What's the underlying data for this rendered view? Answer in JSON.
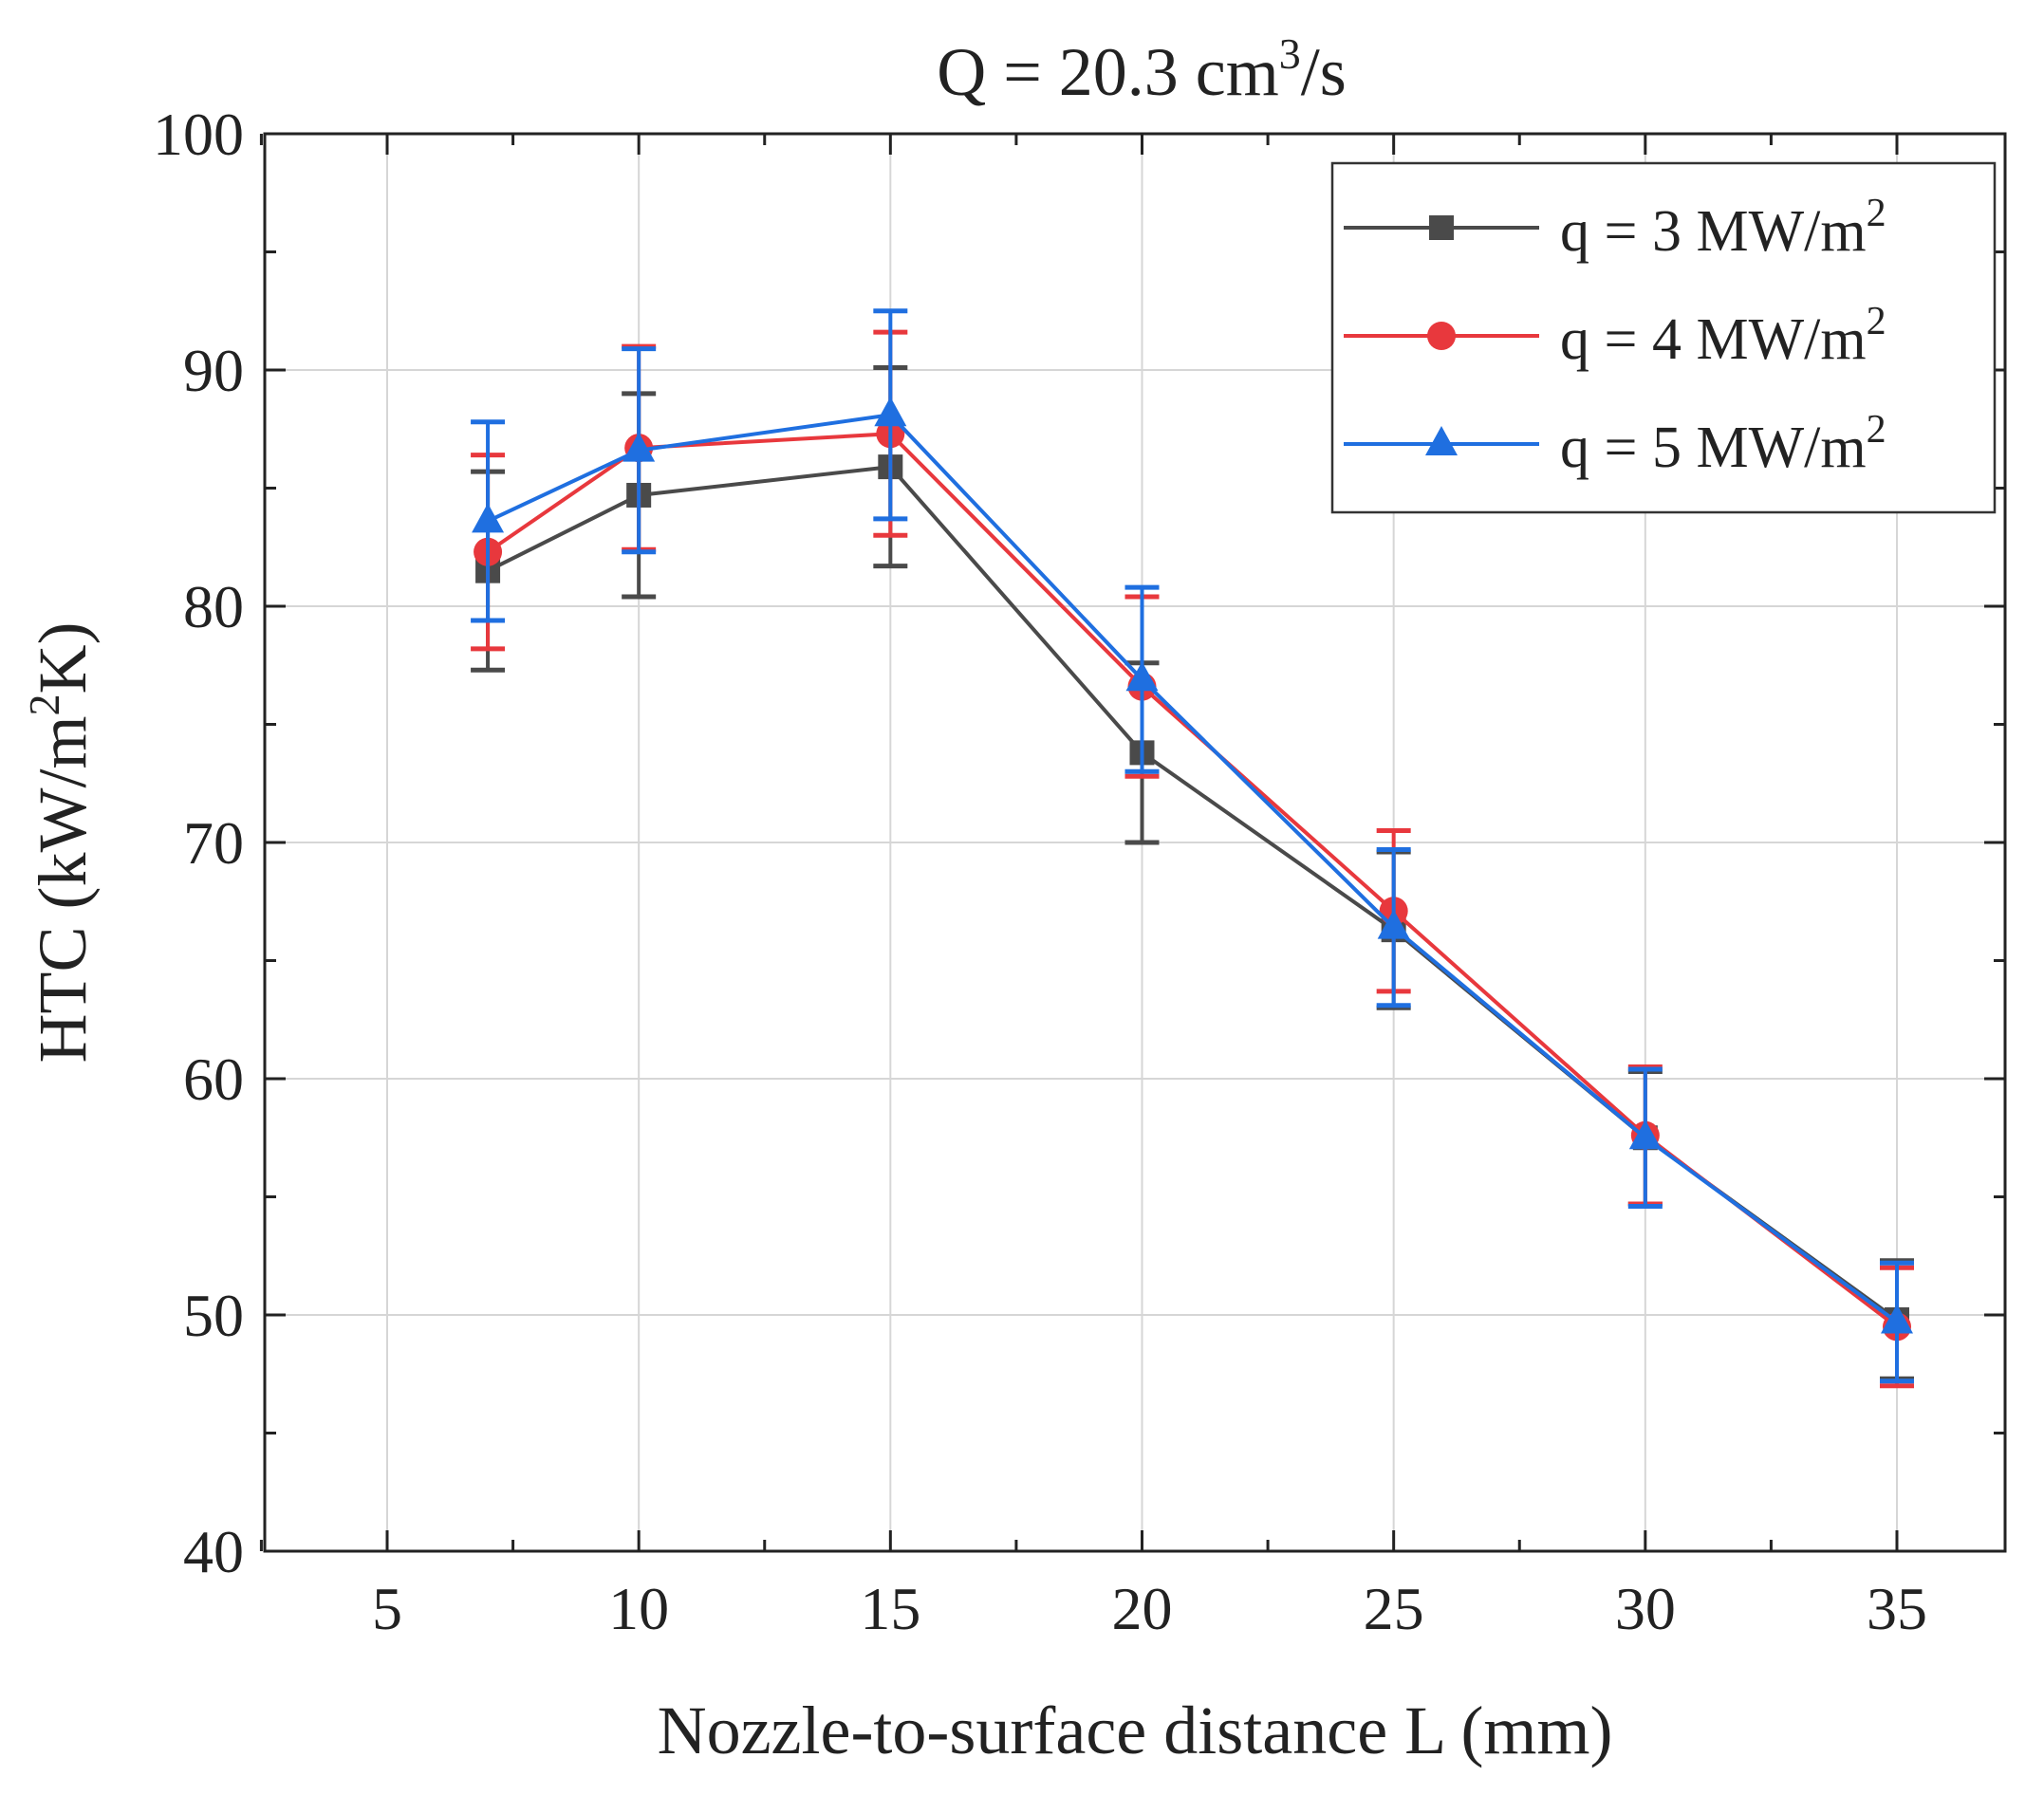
{
  "chart_data": {
    "type": "line",
    "title": "Q = 20.3 cm³/s",
    "title_parts": {
      "main": "Q = 20.3 cm",
      "sup": "3",
      "tail": "/s"
    },
    "xlabel": "Nozzle-to-surface distance L (mm)",
    "ylabel": "HTC (kW/m²K)",
    "ylabel_parts": {
      "main": "HTC (kW/m",
      "sup": "2",
      "tail": "K)"
    },
    "xlim": [
      0,
      37.5
    ],
    "ylim": [
      40,
      100
    ],
    "xticks": [
      5,
      10,
      15,
      20,
      25,
      30,
      35
    ],
    "yticks": [
      40,
      50,
      60,
      70,
      80,
      90,
      100
    ],
    "grid": true,
    "legend_position": "top-right",
    "x": [
      7,
      10,
      15,
      20,
      25,
      30,
      35
    ],
    "series": [
      {
        "name": "q = 3 MW/m²",
        "label_main": "q = 3 MW/m",
        "label_sup": "2",
        "color": "#4a4a4a",
        "marker": "square",
        "values": [
          81.5,
          84.7,
          85.9,
          73.8,
          66.3,
          57.5,
          49.8
        ],
        "errors": [
          4.2,
          4.3,
          4.2,
          3.8,
          3.3,
          2.8,
          2.5
        ]
      },
      {
        "name": "q = 4 MW/m²",
        "label_main": "q = 4 MW/m",
        "label_sup": "2",
        "color": "#e8383d",
        "marker": "circle",
        "values": [
          82.3,
          86.7,
          87.3,
          76.6,
          67.1,
          57.6,
          49.5
        ],
        "errors": [
          4.1,
          4.3,
          4.3,
          3.8,
          3.4,
          2.9,
          2.5
        ]
      },
      {
        "name": "q = 5 MW/m²",
        "label_main": "q = 5 MW/m",
        "label_sup": "2",
        "color": "#1f6fe0",
        "marker": "triangle",
        "values": [
          83.6,
          86.6,
          88.1,
          76.9,
          66.4,
          57.5,
          49.7
        ],
        "errors": [
          4.2,
          4.3,
          4.4,
          3.9,
          3.3,
          2.9,
          2.5
        ]
      }
    ]
  }
}
